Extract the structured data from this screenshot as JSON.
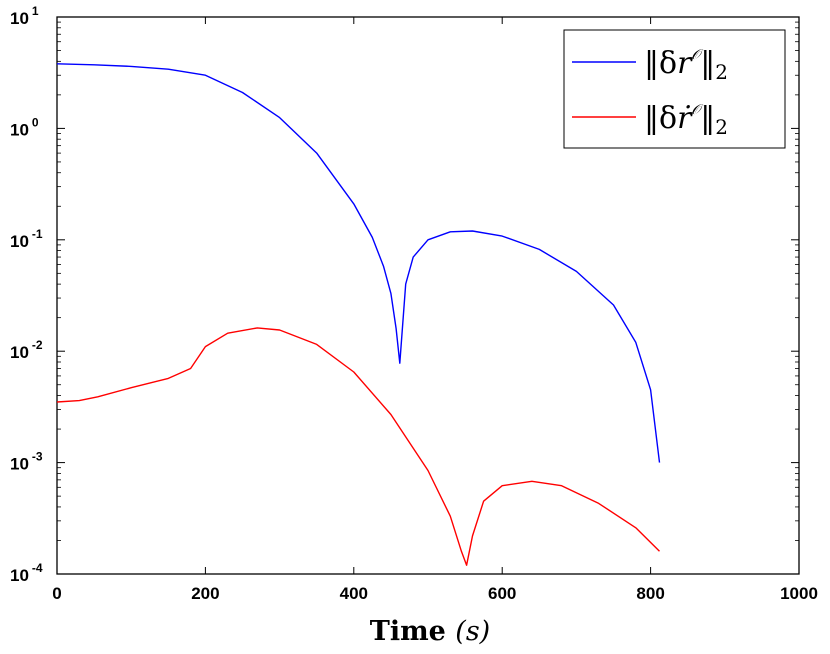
{
  "chart_data": {
    "type": "line",
    "xlabel": "Time (s)",
    "xlabel_main": "Time",
    "xlabel_unit": "(s)",
    "xlim": [
      0,
      1000
    ],
    "ylim": [
      0.0001,
      10
    ],
    "yscale": "log",
    "grid": false,
    "legend_position": "top-right",
    "x_ticks": [
      "0",
      "200",
      "400",
      "600",
      "800",
      "1000"
    ],
    "y_ticks": [
      {
        "base": "10",
        "exp": "1"
      },
      {
        "base": "10",
        "exp": "0"
      },
      {
        "base": "10",
        "exp": "-1"
      },
      {
        "base": "10",
        "exp": "-2"
      },
      {
        "base": "10",
        "exp": "-3"
      },
      {
        "base": "10",
        "exp": "-4"
      }
    ],
    "series": [
      {
        "name": "||δr^O||_2",
        "color": "#0000ff",
        "points": [
          [
            0,
            3.8
          ],
          [
            50,
            3.72
          ],
          [
            100,
            3.6
          ],
          [
            150,
            3.4
          ],
          [
            200,
            3.0
          ],
          [
            250,
            2.1
          ],
          [
            300,
            1.25
          ],
          [
            350,
            0.6
          ],
          [
            400,
            0.21
          ],
          [
            425,
            0.105
          ],
          [
            440,
            0.058
          ],
          [
            450,
            0.033
          ],
          [
            457,
            0.016
          ],
          [
            462,
            0.0078
          ],
          [
            470,
            0.04
          ],
          [
            480,
            0.07
          ],
          [
            500,
            0.1
          ],
          [
            530,
            0.118
          ],
          [
            560,
            0.12
          ],
          [
            600,
            0.108
          ],
          [
            650,
            0.082
          ],
          [
            700,
            0.052
          ],
          [
            750,
            0.026
          ],
          [
            780,
            0.012
          ],
          [
            800,
            0.0045
          ],
          [
            812,
            0.001
          ]
        ]
      },
      {
        "name": "||δṙ^O||_2",
        "color": "#ff0000",
        "points": [
          [
            0,
            0.0035
          ],
          [
            30,
            0.0036
          ],
          [
            55,
            0.0039
          ],
          [
            100,
            0.0047
          ],
          [
            150,
            0.0057
          ],
          [
            180,
            0.007
          ],
          [
            200,
            0.011
          ],
          [
            230,
            0.0145
          ],
          [
            270,
            0.0162
          ],
          [
            300,
            0.0155
          ],
          [
            350,
            0.0115
          ],
          [
            400,
            0.0065
          ],
          [
            450,
            0.0027
          ],
          [
            500,
            0.00085
          ],
          [
            530,
            0.00033
          ],
          [
            545,
            0.00016
          ],
          [
            552,
            0.00012
          ],
          [
            560,
            0.00022
          ],
          [
            575,
            0.00045
          ],
          [
            600,
            0.00062
          ],
          [
            640,
            0.00068
          ],
          [
            680,
            0.00062
          ],
          [
            730,
            0.00043
          ],
          [
            780,
            0.00026
          ],
          [
            812,
            0.00016
          ]
        ]
      }
    ]
  }
}
